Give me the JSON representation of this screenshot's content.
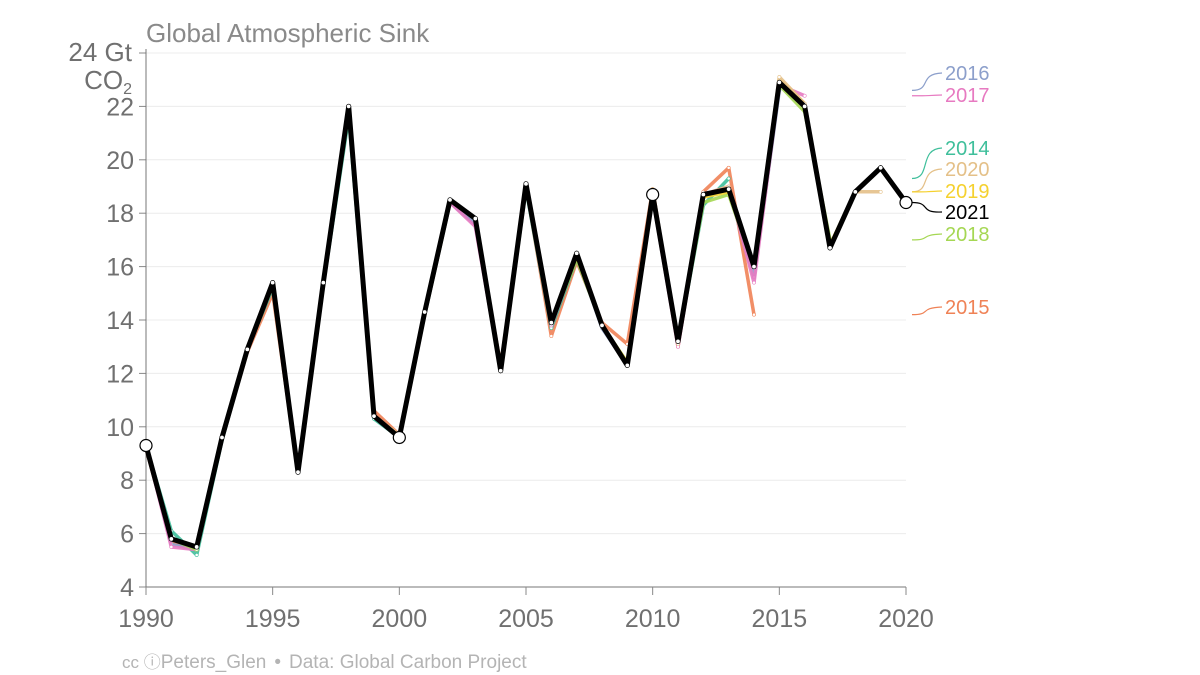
{
  "chart_data": {
    "type": "line",
    "title": "Global Atmospheric Sink",
    "ylabel_unit": "Gt",
    "ylabel_species": "CO",
    "ylabel_sub": "2",
    "ytick_labels": [
      "4",
      "6",
      "8",
      "10",
      "12",
      "14",
      "16",
      "18",
      "20",
      "22",
      "24"
    ],
    "top_tick_label": "24",
    "xtick_labels": [
      "1990",
      "1995",
      "2000",
      "2005",
      "2010",
      "2015",
      "2020"
    ],
    "xlim": [
      1990,
      2020
    ],
    "ylim": [
      4,
      24
    ],
    "grid": true,
    "colors": {
      "2014": "#3fbf9b",
      "2015": "#ef8256",
      "2016": "#8c9fcb",
      "2017": "#e77ac1",
      "2018": "#a5d753",
      "2019": "#f5d12f",
      "2020": "#e4c088",
      "2021": "#000000"
    },
    "series": [
      {
        "name": "2015",
        "x": [
          1990,
          1991,
          1992,
          1993,
          1994,
          1995,
          1996,
          1997,
          1998,
          1999,
          2000,
          2001,
          2002,
          2003,
          2004,
          2005,
          2006,
          2007,
          2008,
          2009,
          2010,
          2011,
          2012,
          2013,
          2014
        ],
        "values": [
          9.2,
          5.7,
          5.4,
          9.6,
          12.8,
          15.0,
          8.3,
          15.4,
          22.0,
          10.6,
          9.7,
          14.2,
          18.4,
          17.7,
          12.3,
          19.0,
          13.4,
          16.2,
          13.9,
          13.1,
          18.9,
          13.0,
          18.8,
          19.7,
          14.2
        ]
      },
      {
        "name": "2014",
        "x": [
          1990,
          1991,
          1992,
          1993,
          1994,
          1995,
          1996,
          1997,
          1998,
          1999,
          2000,
          2001,
          2002,
          2003,
          2004,
          2005,
          2006,
          2007,
          2008,
          2009,
          2010,
          2011,
          2012,
          2013
        ],
        "values": [
          9.3,
          6.1,
          5.2,
          9.5,
          12.9,
          15.2,
          8.3,
          15.3,
          21.6,
          10.3,
          9.6,
          14.2,
          18.4,
          17.6,
          12.1,
          18.9,
          13.7,
          16.3,
          13.8,
          12.4,
          18.6,
          13.2,
          18.3,
          19.3
        ]
      },
      {
        "name": "2016",
        "x": [
          1990,
          1991,
          1992,
          1993,
          1994,
          1995,
          1996,
          1997,
          1998,
          1999,
          2000,
          2001,
          2002,
          2003,
          2004,
          2005,
          2006,
          2007,
          2008,
          2009,
          2010,
          2011,
          2012,
          2013,
          2014,
          2015
        ],
        "values": [
          9.3,
          5.6,
          5.4,
          9.6,
          12.9,
          15.3,
          8.3,
          15.4,
          22.0,
          10.4,
          9.6,
          14.3,
          18.4,
          17.6,
          12.1,
          19.1,
          13.8,
          16.4,
          13.7,
          12.3,
          18.6,
          13.1,
          18.7,
          18.9,
          15.6,
          22.6
        ]
      },
      {
        "name": "2017",
        "x": [
          1990,
          1991,
          1992,
          1993,
          1994,
          1995,
          1996,
          1997,
          1998,
          1999,
          2000,
          2001,
          2002,
          2003,
          2004,
          2005,
          2006,
          2007,
          2008,
          2009,
          2010,
          2011,
          2012,
          2013,
          2014,
          2015,
          2016
        ],
        "values": [
          9.3,
          5.5,
          5.4,
          9.6,
          12.9,
          15.3,
          8.3,
          15.4,
          22.0,
          10.4,
          9.6,
          14.3,
          18.4,
          17.5,
          12.1,
          19.0,
          13.8,
          16.4,
          13.8,
          12.3,
          18.6,
          13.0,
          18.7,
          19.0,
          15.4,
          22.8,
          22.4
        ]
      },
      {
        "name": "2018",
        "x": [
          1990,
          1991,
          1992,
          1993,
          1994,
          1995,
          1996,
          1997,
          1998,
          1999,
          2000,
          2001,
          2002,
          2003,
          2004,
          2005,
          2006,
          2007,
          2008,
          2009,
          2010,
          2011,
          2012,
          2013,
          2014,
          2015,
          2016,
          2017
        ],
        "values": [
          9.3,
          5.8,
          5.4,
          9.6,
          12.9,
          15.3,
          8.3,
          15.4,
          21.8,
          10.4,
          9.6,
          14.3,
          18.5,
          17.8,
          12.1,
          19.1,
          13.9,
          16.3,
          13.8,
          12.4,
          18.7,
          13.2,
          18.4,
          18.7,
          16.0,
          22.8,
          21.8,
          17.0
        ]
      },
      {
        "name": "2019",
        "x": [
          1990,
          1991,
          1992,
          1993,
          1994,
          1995,
          1996,
          1997,
          1998,
          1999,
          2000,
          2001,
          2002,
          2003,
          2004,
          2005,
          2006,
          2007,
          2008,
          2009,
          2010,
          2011,
          2012,
          2013,
          2014,
          2015,
          2016,
          2017,
          2018
        ],
        "values": [
          9.3,
          5.8,
          5.5,
          9.6,
          12.9,
          15.4,
          8.3,
          15.4,
          22.0,
          10.4,
          9.6,
          14.3,
          18.5,
          17.8,
          12.1,
          19.1,
          13.9,
          16.4,
          13.8,
          12.4,
          18.8,
          13.2,
          18.6,
          18.8,
          16.0,
          23.0,
          22.1,
          16.8,
          18.8
        ]
      },
      {
        "name": "2020",
        "x": [
          1990,
          1991,
          1992,
          1993,
          1994,
          1995,
          1996,
          1997,
          1998,
          1999,
          2000,
          2001,
          2002,
          2003,
          2004,
          2005,
          2006,
          2007,
          2008,
          2009,
          2010,
          2011,
          2012,
          2013,
          2014,
          2015,
          2016,
          2017,
          2018,
          2019
        ],
        "values": [
          9.3,
          5.8,
          5.5,
          9.6,
          12.9,
          15.4,
          8.3,
          15.4,
          22.0,
          10.4,
          9.7,
          14.3,
          18.5,
          17.8,
          12.1,
          19.1,
          13.9,
          16.5,
          13.8,
          12.3,
          18.9,
          13.1,
          18.7,
          19.0,
          16.0,
          23.1,
          22.1,
          16.7,
          18.8,
          18.8
        ]
      },
      {
        "name": "2021",
        "x": [
          1990,
          1991,
          1992,
          1993,
          1994,
          1995,
          1996,
          1997,
          1998,
          1999,
          2000,
          2001,
          2002,
          2003,
          2004,
          2005,
          2006,
          2007,
          2008,
          2009,
          2010,
          2011,
          2012,
          2013,
          2014,
          2015,
          2016,
          2017,
          2018,
          2019,
          2020
        ],
        "values": [
          9.3,
          5.8,
          5.5,
          9.6,
          12.9,
          15.4,
          8.3,
          15.4,
          22.0,
          10.4,
          9.6,
          14.3,
          18.5,
          17.8,
          12.1,
          19.1,
          13.9,
          16.5,
          13.8,
          12.3,
          18.7,
          13.2,
          18.7,
          18.9,
          16.0,
          22.9,
          22.0,
          16.7,
          18.8,
          19.7,
          18.4
        ]
      }
    ],
    "open_markers": [
      {
        "x": 1990,
        "y": 9.3
      },
      {
        "x": 2000,
        "y": 9.6
      },
      {
        "x": 2010,
        "y": 18.7
      },
      {
        "x": 2020,
        "y": 18.4
      }
    ],
    "legend": [
      {
        "name": "2016",
        "label": "2016"
      },
      {
        "name": "2017",
        "label": "2017"
      },
      {
        "name": "2014",
        "label": "2014"
      },
      {
        "name": "2020",
        "label": "2020"
      },
      {
        "name": "2019",
        "label": "2019"
      },
      {
        "name": "2021",
        "label": "2021"
      },
      {
        "name": "2018",
        "label": "2018"
      },
      {
        "name": "2015",
        "label": "2015"
      }
    ]
  },
  "footer": {
    "cc_icons": "cc ⓘ",
    "author": "Peters_Glen",
    "separator": "•",
    "source": "Data: Global Carbon Project"
  }
}
